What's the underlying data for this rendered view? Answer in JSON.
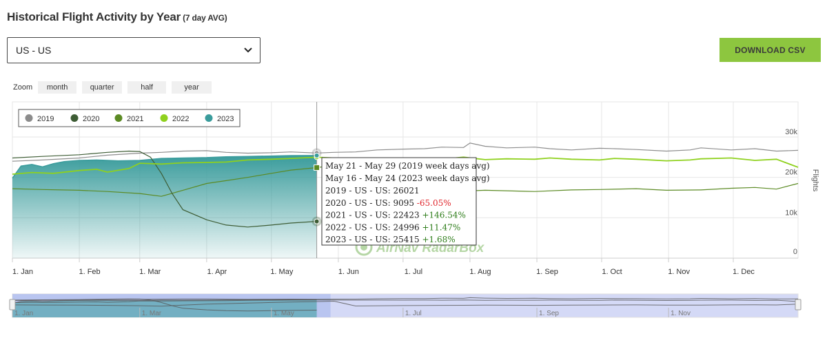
{
  "header": {
    "title": "Historical Flight Activity by Year",
    "subtitle": "(7 day AVG)"
  },
  "region_select": {
    "value": "US - US"
  },
  "download_button": {
    "label": "DOWNLOAD CSV"
  },
  "zoom": {
    "label": "Zoom",
    "buttons": [
      "month",
      "quarter",
      "half",
      "year"
    ]
  },
  "colors": {
    "accent": "#8dc63f",
    "s2019": "#8c8c8c",
    "s2020": "#3d5c34",
    "s2021": "#5b8a23",
    "s2022": "#8fd11e",
    "s2023": "#3a9c9c",
    "positive": "#2e7d1a",
    "negative": "#e0262c"
  },
  "chart_data": {
    "type": "line",
    "title": "",
    "xlabel": "",
    "ylabel": "Flights",
    "ylim": [
      0,
      30000
    ],
    "yticks": [
      "0",
      "10k",
      "20k",
      "30k"
    ],
    "xticks": [
      "1. Jan",
      "1. Feb",
      "1. Mar",
      "1. Apr",
      "1. May",
      "1. Jun",
      "1. Jul",
      "1. Aug",
      "1. Sep",
      "1. Oct",
      "1. Nov",
      "1. Dec"
    ],
    "navigator_ticks": [
      "1. Jan",
      "1. Mar",
      "1. May",
      "1. Jul",
      "1. Sep",
      "1. Nov"
    ],
    "legend_position": "top-left",
    "grid": true,
    "series": [
      {
        "name": "2019",
        "x": [
          1,
          15,
          32,
          45,
          60,
          70,
          80,
          91,
          100,
          110,
          121,
          130,
          142,
          150,
          160,
          170,
          182,
          192,
          200,
          210,
          213,
          220,
          230,
          243,
          250,
          260,
          273,
          280,
          290,
          304,
          315,
          320,
          334,
          345,
          355,
          365
        ],
        "values": [
          24000,
          24300,
          24800,
          25500,
          26000,
          26200,
          26500,
          26600,
          26200,
          26000,
          26100,
          26300,
          26021,
          26200,
          26300,
          26800,
          27000,
          27100,
          27500,
          27400,
          28500,
          27700,
          27300,
          27500,
          27100,
          26800,
          27200,
          27100,
          26900,
          26500,
          26800,
          27300,
          26800,
          27100,
          26500,
          26700
        ]
      },
      {
        "name": "2020",
        "x": [
          1,
          15,
          32,
          45,
          55,
          60,
          65,
          70,
          75,
          80,
          91,
          100,
          110,
          121,
          130,
          142
        ],
        "values": [
          24800,
          25200,
          25600,
          26200,
          26500,
          26400,
          25000,
          21000,
          16000,
          12000,
          9500,
          8200,
          7700,
          8200,
          8700,
          9095
        ]
      },
      {
        "name": "2021",
        "x": [
          1,
          15,
          32,
          45,
          60,
          70,
          80,
          91,
          100,
          110,
          121,
          130,
          142,
          150,
          160,
          182,
          192,
          210,
          220,
          243,
          260,
          273,
          290,
          304,
          320,
          334,
          345,
          355,
          365
        ],
        "values": [
          17200,
          17000,
          16800,
          16500,
          16000,
          15300,
          16800,
          18500,
          19200,
          20000,
          21000,
          21800,
          22423,
          23000,
          15500,
          16200,
          16400,
          16600,
          16800,
          16500,
          16900,
          17000,
          17200,
          16800,
          16900,
          17300,
          17500,
          17100,
          18500
        ]
      },
      {
        "name": "2022",
        "x": [
          1,
          10,
          20,
          32,
          40,
          45,
          55,
          60,
          70,
          80,
          91,
          100,
          110,
          121,
          130,
          142,
          150,
          160,
          170,
          182,
          192,
          200,
          210,
          220,
          230,
          243,
          250,
          260,
          273,
          280,
          290,
          304,
          315,
          320,
          334,
          345,
          355,
          365
        ],
        "values": [
          20800,
          21200,
          21000,
          21700,
          22000,
          21300,
          22200,
          23500,
          23300,
          23600,
          23700,
          23800,
          24300,
          24500,
          24700,
          24996,
          24800,
          24600,
          24700,
          24600,
          24800,
          24500,
          25000,
          24400,
          24600,
          24500,
          24800,
          24500,
          24300,
          24700,
          24500,
          24100,
          24300,
          24600,
          24800,
          24200,
          24500,
          22500
        ]
      },
      {
        "name": "2023",
        "x": [
          1,
          5,
          10,
          15,
          20,
          25,
          32,
          40,
          50,
          60,
          70,
          80,
          91,
          100,
          110,
          121,
          130,
          142
        ],
        "values": [
          19800,
          22800,
          23200,
          22600,
          23400,
          23900,
          24200,
          24300,
          24100,
          24200,
          24700,
          24800,
          24900,
          25100,
          25200,
          25300,
          25400,
          25415
        ]
      }
    ],
    "tooltip": {
      "line1": "May 21 - May 29 (2019 week days avg)",
      "line2": "May 16 - May 24 (2023 week days avg)",
      "rows": [
        {
          "label": "2019 - US - US: ",
          "value": "26021",
          "change": ""
        },
        {
          "label": "2020 - US - US: ",
          "value": "9095",
          "change": "-65.05%"
        },
        {
          "label": "2021 - US - US: ",
          "value": "22423",
          "change": "+146.54%"
        },
        {
          "label": "2022 - US - US: ",
          "value": "24996",
          "change": "+11.47%"
        },
        {
          "label": "2023 - US - US: ",
          "value": "25415",
          "change": "+1.68%"
        }
      ]
    },
    "watermark": "AirNav RadarBox"
  }
}
